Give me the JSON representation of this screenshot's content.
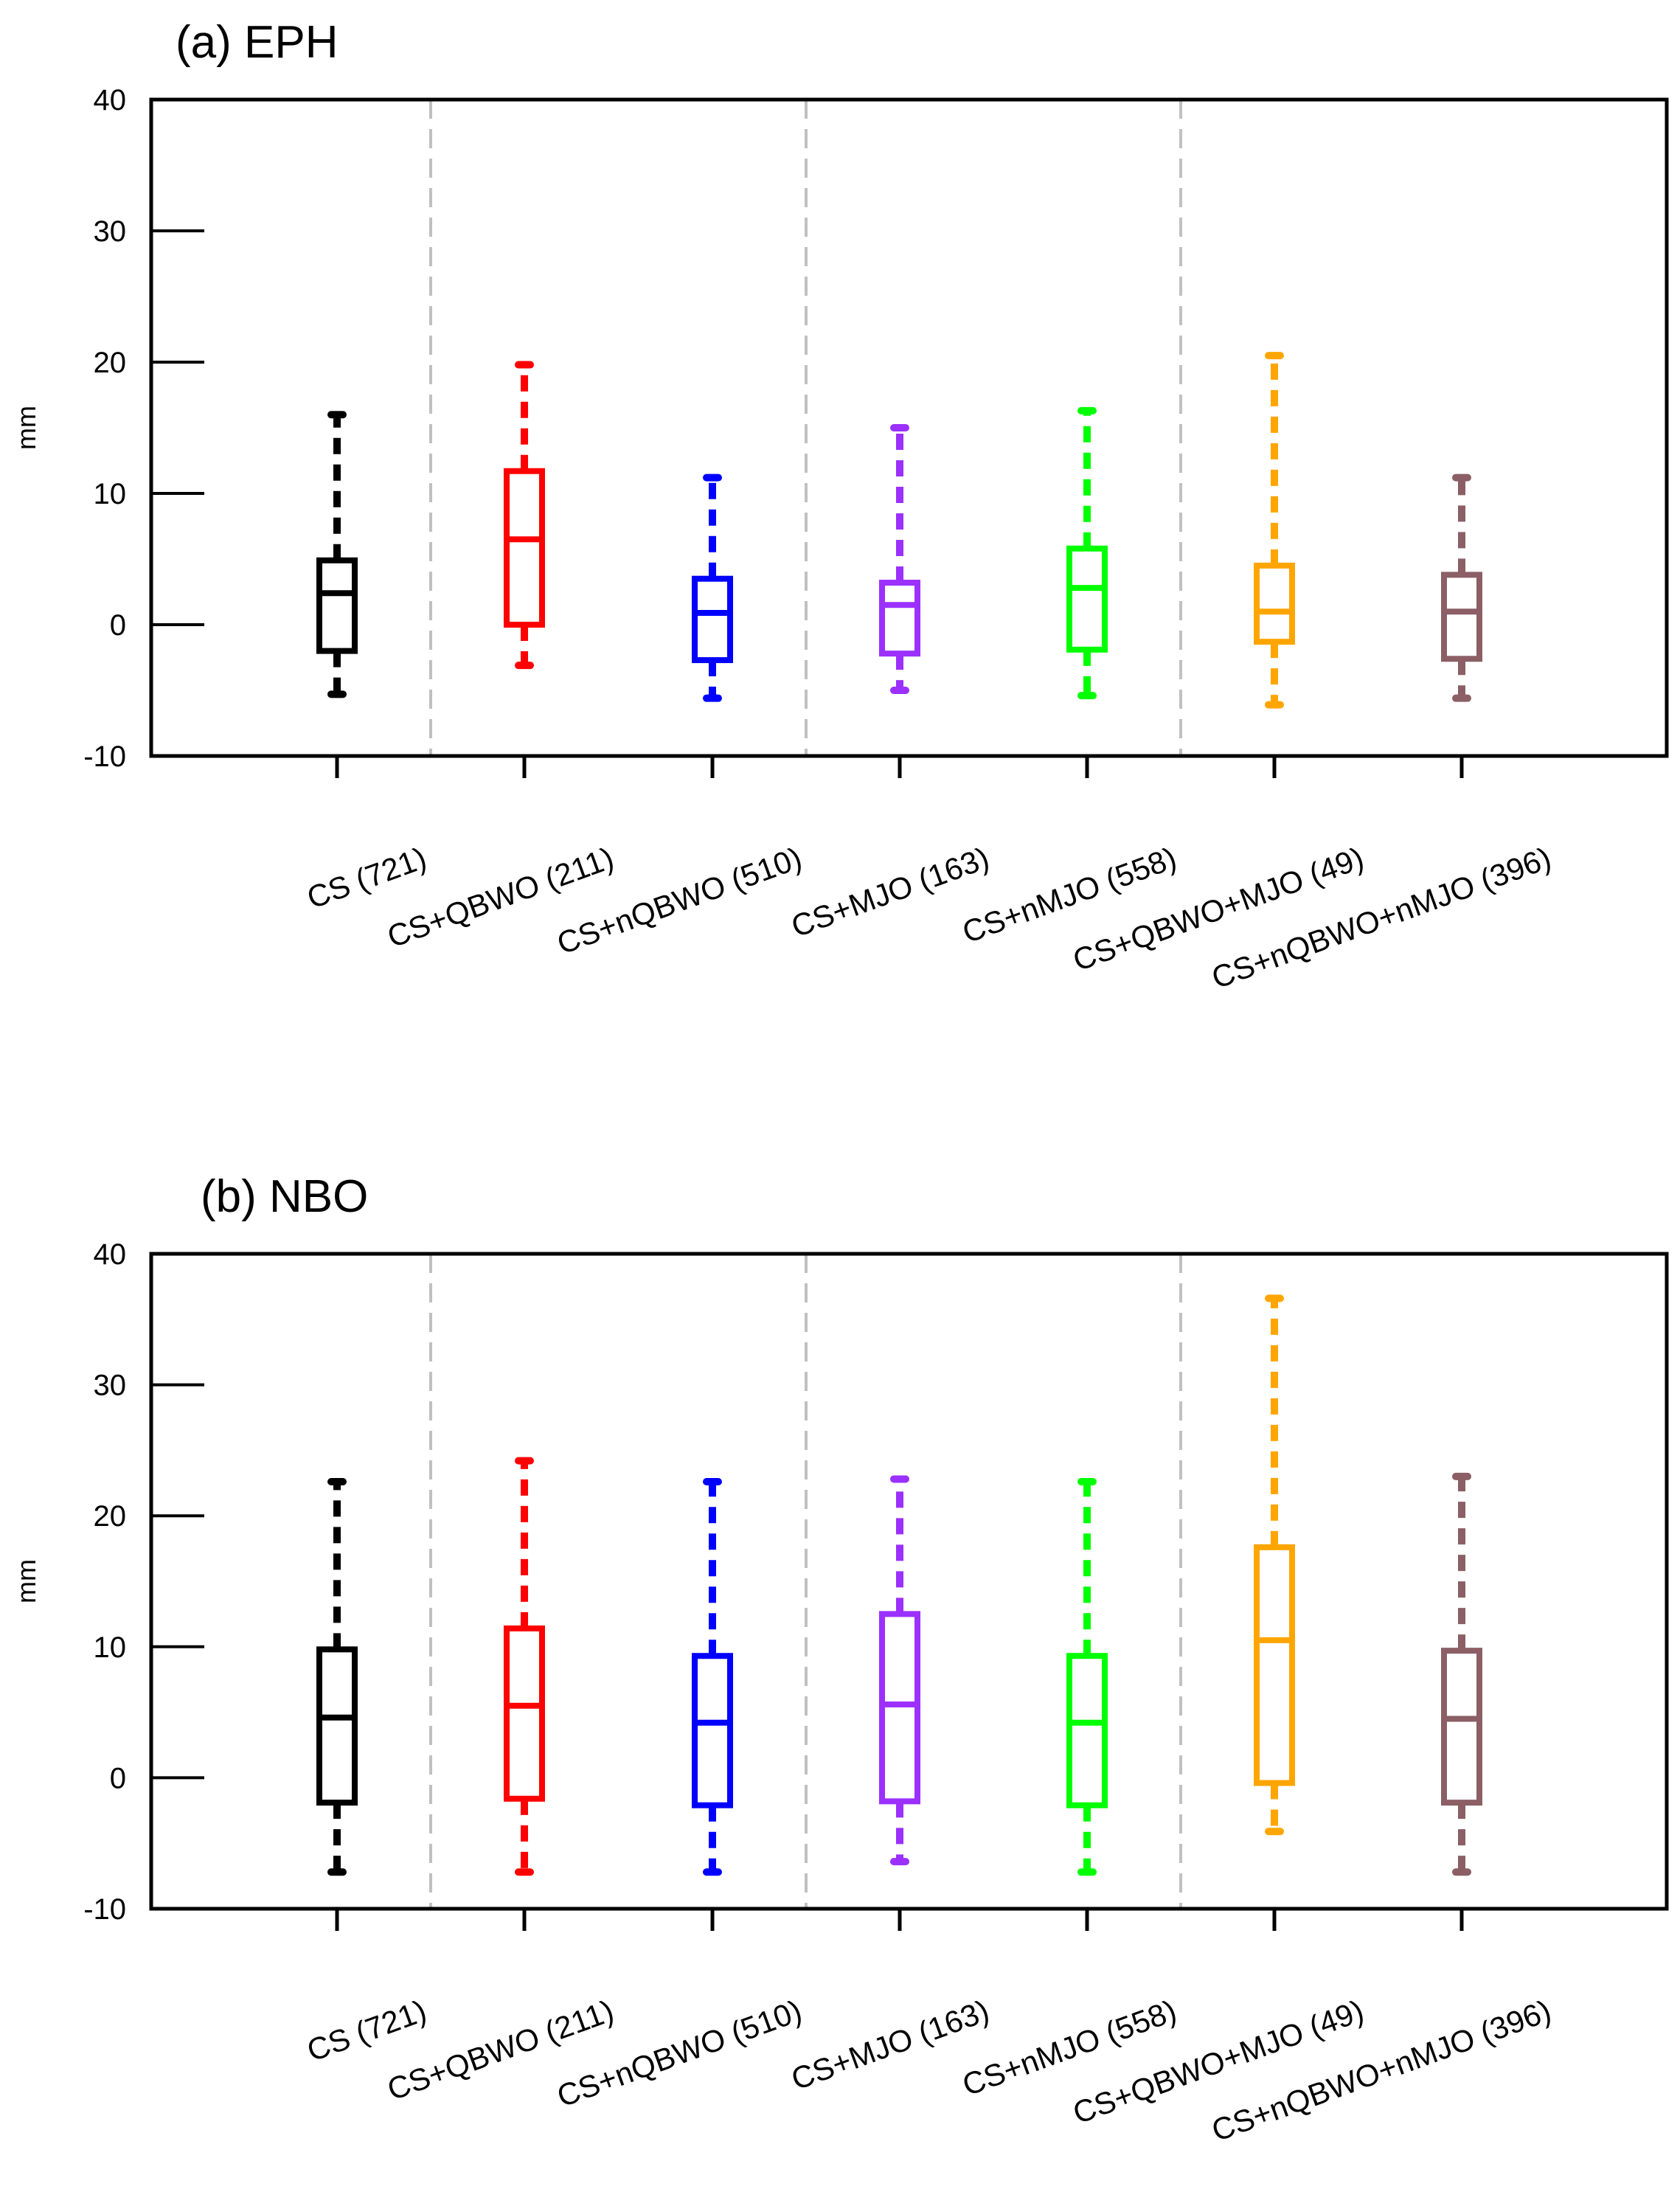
{
  "chart_data": [
    {
      "type": "box",
      "title": "(a) EPH",
      "ylabel": "mm",
      "ylim": [
        -10,
        40
      ],
      "yticks": [
        -10,
        0,
        10,
        20,
        30,
        40
      ],
      "group_separators_after": [
        1,
        3,
        5
      ],
      "categories": [
        "CS (721)",
        "CS+QBWO (211)",
        "CS+nQBWO (510)",
        "CS+MJO (163)",
        "CS+nMJO (558)",
        "CS+QBWO+MJO (49)",
        "CS+nQBWO+nMJO (396)"
      ],
      "colors": [
        "#000000",
        "#ff0000",
        "#0000ff",
        "#9b30ff",
        "#00ff00",
        "#ffa500",
        "#8b5f65"
      ],
      "boxes": [
        {
          "min": -5.3,
          "q1": -2.0,
          "median": 2.4,
          "q3": 4.9,
          "max": 16.0
        },
        {
          "min": -3.1,
          "q1": 0.0,
          "median": 6.5,
          "q3": 11.7,
          "max": 19.8
        },
        {
          "min": -5.6,
          "q1": -2.7,
          "median": 0.9,
          "q3": 3.5,
          "max": 11.2
        },
        {
          "min": -5.0,
          "q1": -2.2,
          "median": 1.5,
          "q3": 3.2,
          "max": 15.0
        },
        {
          "min": -5.4,
          "q1": -1.9,
          "median": 2.8,
          "q3": 5.8,
          "max": 16.3
        },
        {
          "min": -6.1,
          "q1": -1.3,
          "median": 1.0,
          "q3": 4.5,
          "max": 20.5
        },
        {
          "min": -5.6,
          "q1": -2.6,
          "median": 1.0,
          "q3": 3.8,
          "max": 11.2
        }
      ]
    },
    {
      "type": "box",
      "title": "(b) NBO",
      "ylabel": "mm",
      "ylim": [
        -10,
        40
      ],
      "yticks": [
        -10,
        0,
        10,
        20,
        30,
        40
      ],
      "group_separators_after": [
        1,
        3,
        5
      ],
      "categories": [
        "CS (721)",
        "CS+QBWO (211)",
        "CS+nQBWO (510)",
        "CS+MJO (163)",
        "CS+nMJO (558)",
        "CS+QBWO+MJO (49)",
        "CS+nQBWO+nMJO (396)"
      ],
      "colors": [
        "#000000",
        "#ff0000",
        "#0000ff",
        "#9b30ff",
        "#00ff00",
        "#ffa500",
        "#8b5f65"
      ],
      "boxes": [
        {
          "min": -7.2,
          "q1": -1.9,
          "median": 4.6,
          "q3": 9.8,
          "max": 22.6
        },
        {
          "min": -7.2,
          "q1": -1.6,
          "median": 5.5,
          "q3": 11.4,
          "max": 24.2
        },
        {
          "min": -7.2,
          "q1": -2.1,
          "median": 4.2,
          "q3": 9.3,
          "max": 22.6
        },
        {
          "min": -6.4,
          "q1": -1.8,
          "median": 5.6,
          "q3": 12.5,
          "max": 22.8
        },
        {
          "min": -7.2,
          "q1": -2.1,
          "median": 4.2,
          "q3": 9.3,
          "max": 22.6
        },
        {
          "min": -4.1,
          "q1": -0.4,
          "median": 10.5,
          "q3": 17.6,
          "max": 36.6
        },
        {
          "min": -7.2,
          "q1": -1.9,
          "median": 4.5,
          "q3": 9.7,
          "max": 23.0
        }
      ]
    }
  ]
}
